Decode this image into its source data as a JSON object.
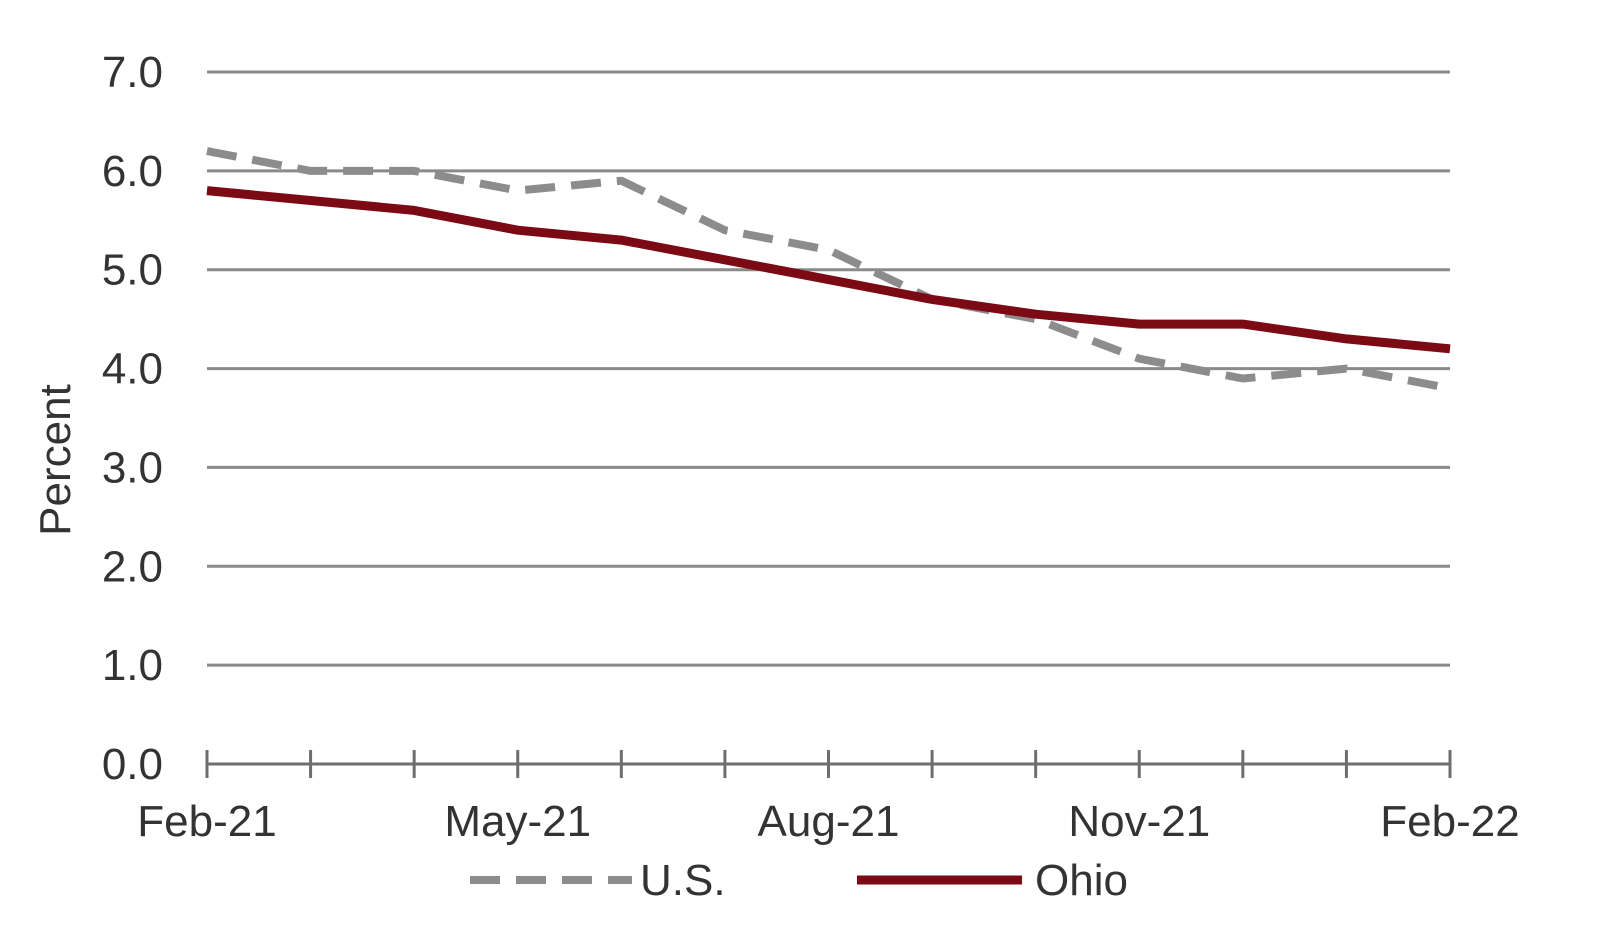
{
  "chart_data": {
    "type": "line",
    "title": "",
    "xlabel": "",
    "ylabel": "Percent",
    "ylim": [
      0,
      7
    ],
    "yticks": [
      "0.0",
      "1.0",
      "2.0",
      "3.0",
      "4.0",
      "5.0",
      "6.0",
      "7.0"
    ],
    "x": [
      "Feb-21",
      "Mar-21",
      "Apr-21",
      "May-21",
      "Jun-21",
      "Jul-21",
      "Aug-21",
      "Sep-21",
      "Oct-21",
      "Nov-21",
      "Dec-21",
      "Jan-22",
      "Feb-22"
    ],
    "xtick_labels": [
      "Feb-21",
      "May-21",
      "Aug-21",
      "Nov-21",
      "Feb-22"
    ],
    "grid": true,
    "legend": "bottom",
    "series": [
      {
        "name": "U.S.",
        "style": "dashed",
        "color": "#8c8c8c",
        "values": [
          6.2,
          6.0,
          6.0,
          5.8,
          5.9,
          5.4,
          5.2,
          4.7,
          4.5,
          4.1,
          3.9,
          4.0,
          3.8
        ]
      },
      {
        "name": "Ohio",
        "style": "solid",
        "color": "#7b0a14",
        "values": [
          5.8,
          5.7,
          5.6,
          5.4,
          5.3,
          5.1,
          4.9,
          4.7,
          4.55,
          4.45,
          4.45,
          4.3,
          4.2
        ]
      }
    ]
  }
}
